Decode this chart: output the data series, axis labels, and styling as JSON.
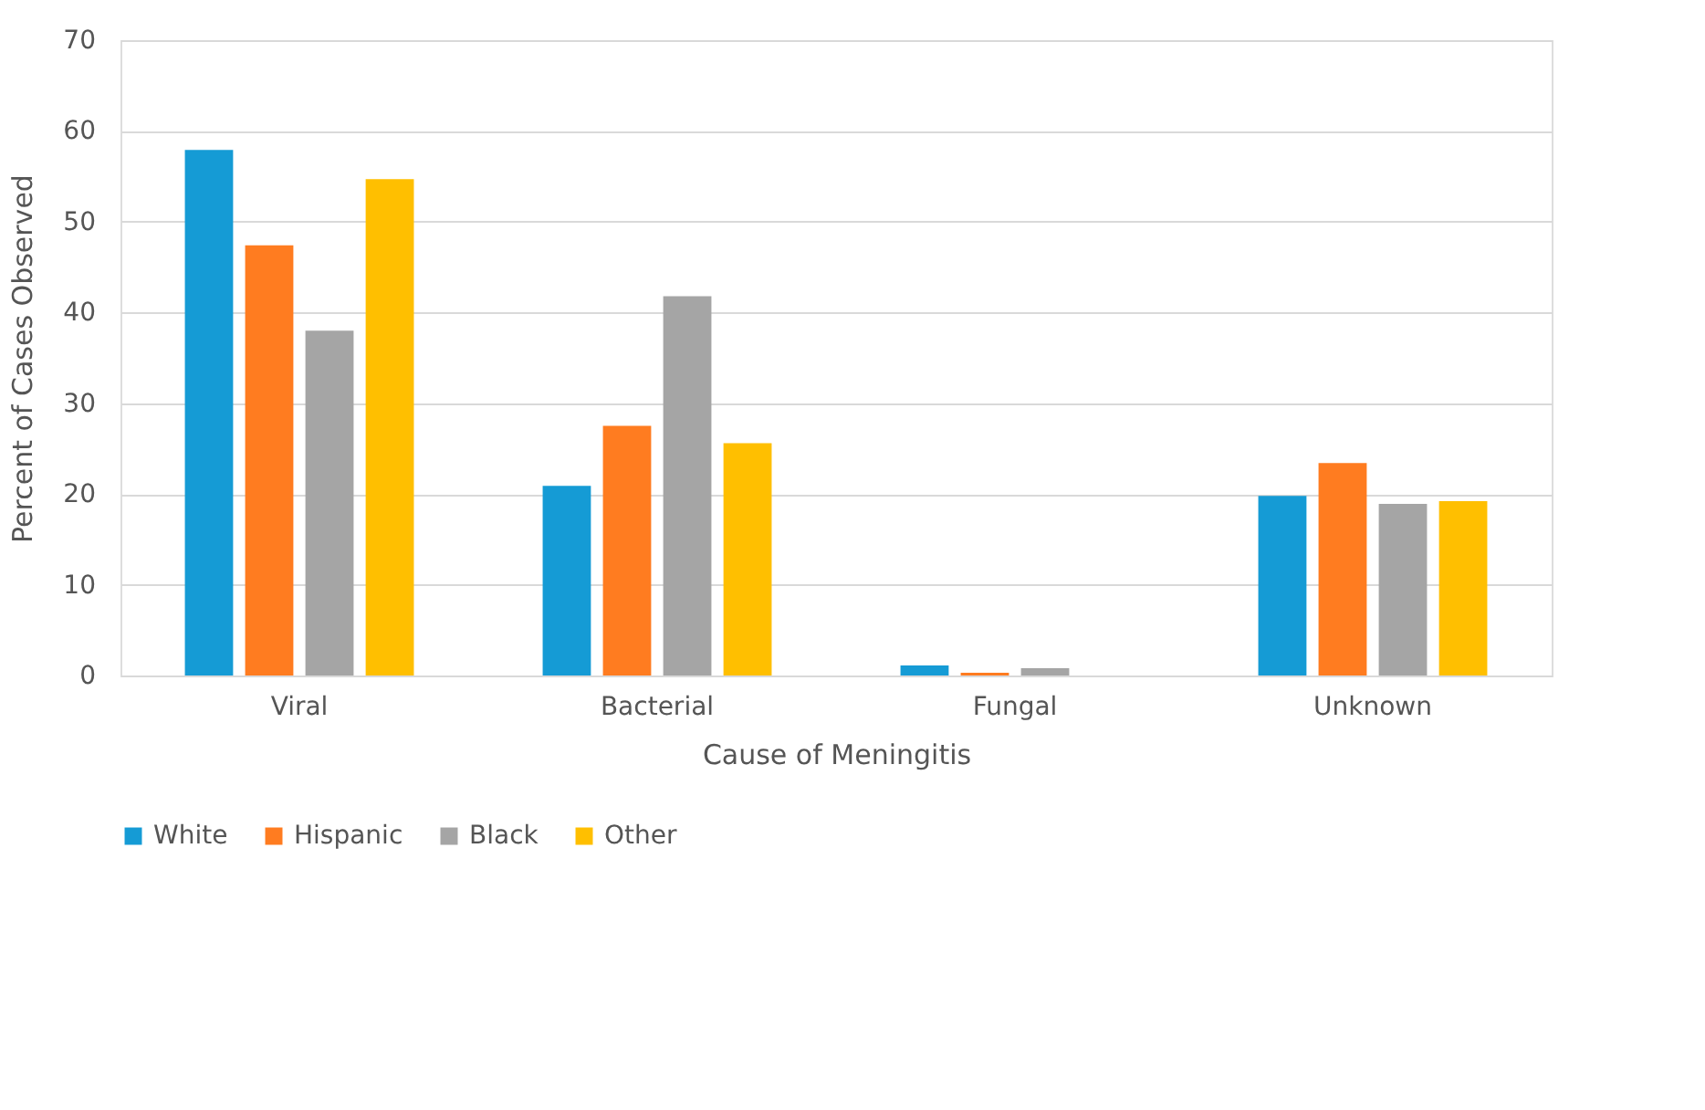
{
  "chart_data": {
    "type": "bar",
    "xlabel": "Cause of Meningitis",
    "ylabel": "Percent of Cases Observed",
    "categories": [
      "Viral",
      "Bacterial",
      "Fungal",
      "Unknown"
    ],
    "series": [
      {
        "name": "White",
        "color": "#159bd5",
        "values": [
          57.9,
          20.9,
          1.1,
          19.8
        ]
      },
      {
        "name": "Hispanic",
        "color": "#ff7c20",
        "values": [
          47.4,
          27.5,
          0.3,
          23.4
        ]
      },
      {
        "name": "Black",
        "color": "#a5a5a5",
        "values": [
          38.0,
          41.8,
          0.8,
          18.9
        ]
      },
      {
        "name": "Other",
        "color": "#ffbf00",
        "values": [
          54.7,
          25.6,
          0,
          19.2
        ]
      }
    ],
    "ylim": [
      0,
      70
    ],
    "yticks": [
      0,
      10,
      20,
      30,
      40,
      50,
      60,
      70
    ],
    "grid": "y",
    "legend": "bottom"
  }
}
